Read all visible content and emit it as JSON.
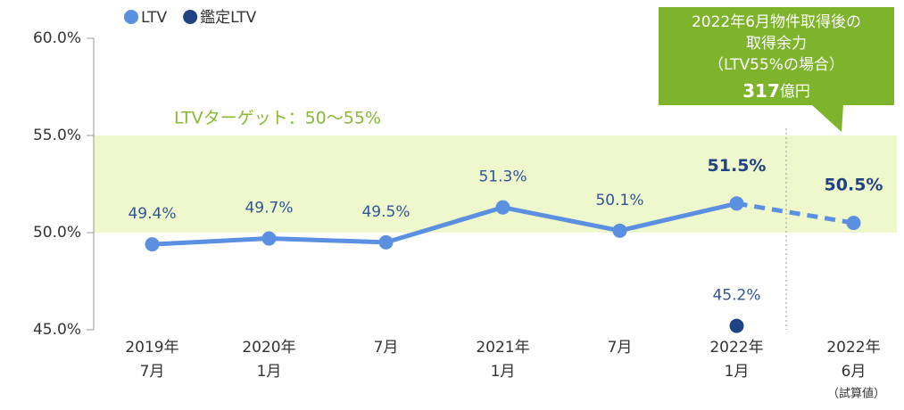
{
  "chart_data": {
    "type": "line",
    "categories": [
      [
        "2019年",
        "7月"
      ],
      [
        "2020年",
        "1月"
      ],
      [
        "7月"
      ],
      [
        "2021年",
        "1月"
      ],
      [
        "7月"
      ],
      [
        "2022年",
        "1月"
      ],
      [
        "2022年",
        "6月",
        "（試算値）"
      ]
    ],
    "series": [
      {
        "name": "LTV",
        "color": "#5b8fe0",
        "values": [
          49.4,
          49.7,
          49.5,
          51.3,
          50.1,
          51.5,
          50.5
        ],
        "value_labels": [
          "49.4%",
          "49.7%",
          "49.5%",
          "51.3%",
          "50.1%",
          "51.5%",
          "50.5%"
        ],
        "dashed_segments": [
          5
        ],
        "highlight_indices": [
          5,
          6
        ]
      },
      {
        "name": "鑑定LTV",
        "color": "#1f4282",
        "values": [
          null,
          null,
          null,
          null,
          null,
          45.2,
          null
        ],
        "value_labels": [
          null,
          null,
          null,
          null,
          null,
          "45.2%",
          null
        ]
      }
    ],
    "ylim": [
      45,
      60
    ],
    "yticks": [
      {
        "value": 45,
        "label": "45.0%"
      },
      {
        "value": 50,
        "label": "50.0%"
      },
      {
        "value": 55,
        "label": "55.0%"
      },
      {
        "value": 60,
        "label": "60.0%"
      }
    ],
    "target_band": {
      "range": [
        50,
        55
      ],
      "label": "LTVターゲット：50〜55%",
      "color": "#eef8cc"
    },
    "callout": {
      "lines": [
        "2022年6月物件取得後の",
        "取得余力",
        "（LTV55%の場合）"
      ],
      "amount": "317",
      "unit": "億円",
      "color": "#7db42c"
    },
    "legend": "top-left"
  }
}
